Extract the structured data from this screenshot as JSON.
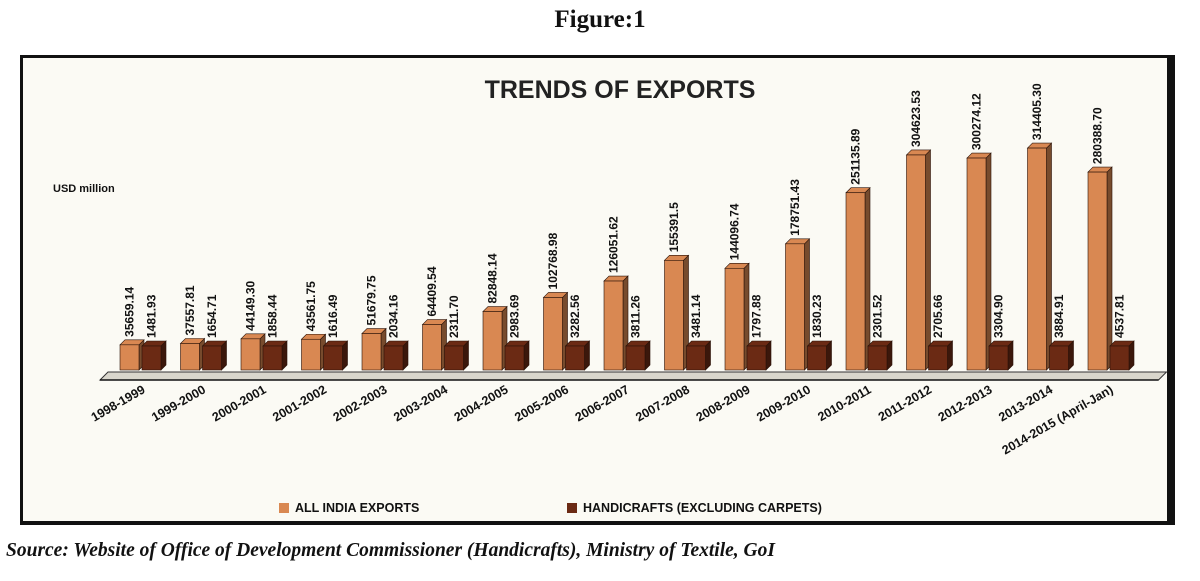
{
  "figure_caption": "Figure:1",
  "source_note": "Source: Website of Office of Development Commissioner (Handicrafts), Ministry of Textile, GoI",
  "chart_data": {
    "type": "bar",
    "title": "TRENDS OF EXPORTS",
    "ylabel": "USD million",
    "xlabel": "",
    "ylim": [
      0,
      340000
    ],
    "grid": false,
    "legend_position": "bottom",
    "categories": [
      "1998-1999",
      "1999-2000",
      "2000-2001",
      "2001-2002",
      "2002-2003",
      "2003-2004",
      "2004-2005",
      "2005-2006",
      "2006-2007",
      "2007-2008",
      "2008-2009",
      "2009-2010",
      "2010-2011",
      "2011-2012",
      "2012-2013",
      "2013-2014",
      "2014-2015 (April-Jan)"
    ],
    "series": [
      {
        "name": "ALL INDIA EXPORTS",
        "color": "#d98852",
        "values": [
          35659.14,
          37557.81,
          44149.3,
          43561.75,
          51679.75,
          64409.54,
          82848.14,
          102768.98,
          126051.62,
          155391.5,
          144096.74,
          178751.43,
          251135.89,
          304623.53,
          300274.12,
          314405.3,
          280388.7
        ],
        "labels": [
          "35659.14",
          "37557.81",
          "44149.30",
          "43561.75",
          "51679.75",
          "64409.54",
          "82848.14",
          "102768.98",
          "126051.62",
          "155391.5",
          "144096.74",
          "178751.43",
          "251135.89",
          "304623.53",
          "300274.12",
          "314405.30",
          "280388.70"
        ]
      },
      {
        "name": "HANDICRAFTS (EXCLUDING CARPETS)",
        "color": "#6b2a14",
        "values": [
          1481.93,
          1654.71,
          1858.44,
          1616.49,
          2034.16,
          2311.7,
          2983.69,
          3282.56,
          3811.26,
          3481.14,
          1797.88,
          1830.23,
          2301.52,
          2705.66,
          3304.9,
          3884.91,
          4537.81
        ],
        "labels": [
          "1481.93",
          "1654.71",
          "1858.44",
          "1616.49",
          "2034.16",
          "2311.70",
          "2983.69",
          "3282.56",
          "3811.26",
          "3481.14",
          "1797.88",
          "1830.23",
          "2301.52",
          "2705.66",
          "3304.90",
          "3884.91",
          "4537.81"
        ]
      }
    ]
  }
}
